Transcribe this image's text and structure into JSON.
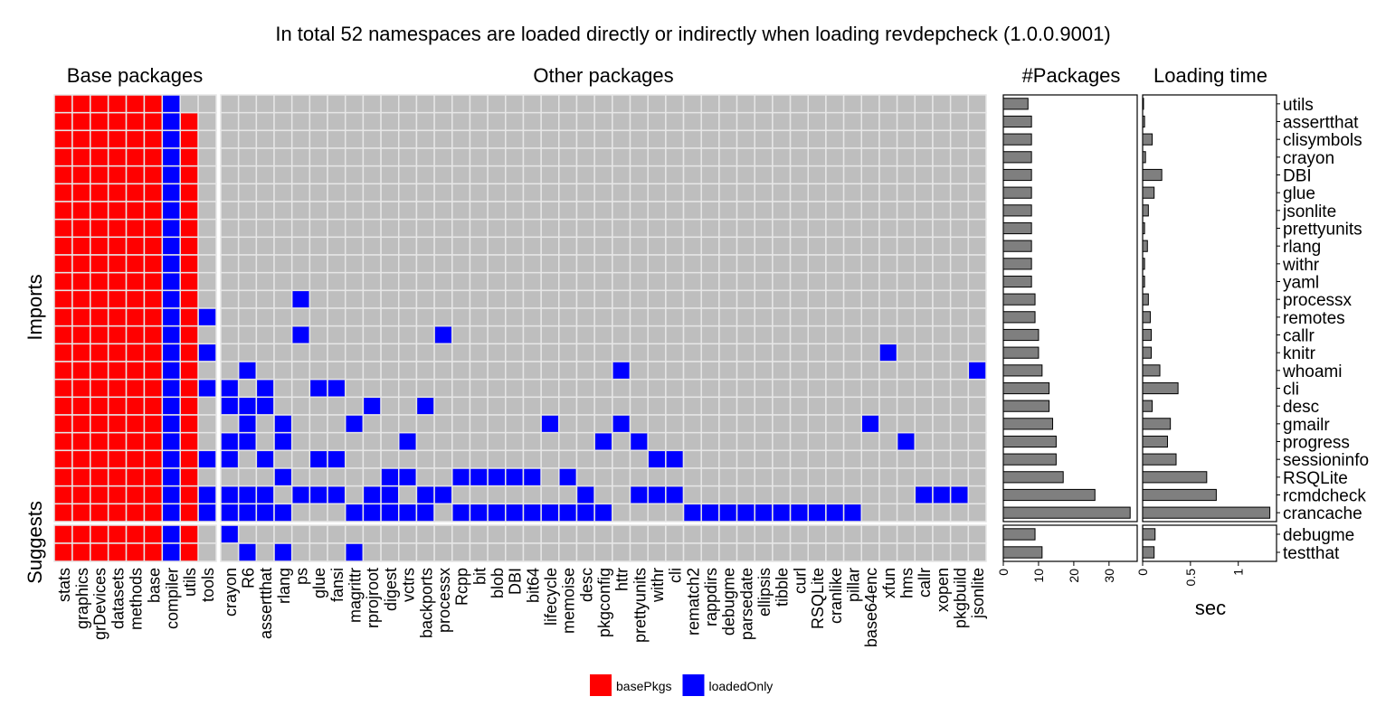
{
  "chart_data": {
    "type": "heatmap",
    "title": "In total 52 namespaces are loaded directly or indirectly when loading revdepcheck (1.0.0.9001)",
    "facets": {
      "columns": [
        "Base packages",
        "Other packages"
      ],
      "rows": [
        "Imports",
        "Suggests"
      ]
    },
    "legend": {
      "position": "bottom",
      "items": [
        {
          "label": "basePkgs",
          "color": "#ff0000"
        },
        {
          "label": "loadedOnly",
          "color": "#0000ff"
        }
      ]
    },
    "colors": {
      "tile_empty": "#bebebe",
      "grid": "#e6e6e6",
      "bar_fill": "#7f7f7f"
    },
    "base_columns": [
      "stats",
      "graphics",
      "grDevices",
      "datasets",
      "methods",
      "base",
      "compiler",
      "utils",
      "tools"
    ],
    "other_columns": [
      "crayon",
      "R6",
      "assertthat",
      "rlang",
      "ps",
      "glue",
      "fansi",
      "magrittr",
      "rprojroot",
      "digest",
      "vctrs",
      "backports",
      "processx",
      "Rcpp",
      "bit",
      "blob",
      "DBI",
      "bit64",
      "lifecycle",
      "memoise",
      "desc",
      "pkgconfig",
      "httr",
      "prettyunits",
      "withr",
      "cli",
      "rematch2",
      "rappdirs",
      "debugme",
      "parsedate",
      "ellipsis",
      "tibble",
      "curl",
      "RSQLite",
      "cranlike",
      "pillar",
      "base64enc",
      "xfun",
      "hms",
      "callr",
      "xopen",
      "pkgbuild",
      "jsonlite"
    ],
    "rows": [
      {
        "package": "utils",
        "type": "Imports",
        "base": "rrrrrrbx.",
        "other": [],
        "n_packages": 7,
        "load_time": 0.005
      },
      {
        "package": "assertthat",
        "type": "Imports",
        "base": "rrrrrrbr.",
        "other": [],
        "n_packages": 8,
        "load_time": 0.02
      },
      {
        "package": "clisymbols",
        "type": "Imports",
        "base": "rrrrrrbr.",
        "other": [],
        "n_packages": 8,
        "load_time": 0.1
      },
      {
        "package": "crayon",
        "type": "Imports",
        "base": "rrrrrrbr.",
        "other": [],
        "n_packages": 8,
        "load_time": 0.03
      },
      {
        "package": "DBI",
        "type": "Imports",
        "base": "rrrrrrbr.",
        "other": [],
        "n_packages": 8,
        "load_time": 0.2
      },
      {
        "package": "glue",
        "type": "Imports",
        "base": "rrrrrrbr.",
        "other": [],
        "n_packages": 8,
        "load_time": 0.12
      },
      {
        "package": "jsonlite",
        "type": "Imports",
        "base": "rrrrrrbr.",
        "other": [],
        "n_packages": 8,
        "load_time": 0.06
      },
      {
        "package": "prettyunits",
        "type": "Imports",
        "base": "rrrrrrbr.",
        "other": [],
        "n_packages": 8,
        "load_time": 0.02
      },
      {
        "package": "rlang",
        "type": "Imports",
        "base": "rrrrrrbr.",
        "other": [],
        "n_packages": 8,
        "load_time": 0.05
      },
      {
        "package": "withr",
        "type": "Imports",
        "base": "rrrrrrbr.",
        "other": [],
        "n_packages": 8,
        "load_time": 0.02
      },
      {
        "package": "yaml",
        "type": "Imports",
        "base": "rrrrrrbr.",
        "other": [],
        "n_packages": 8,
        "load_time": 0.02
      },
      {
        "package": "processx",
        "type": "Imports",
        "base": "rrrrrrbr.",
        "other": [
          "ps"
        ],
        "n_packages": 9,
        "load_time": 0.06
      },
      {
        "package": "remotes",
        "type": "Imports",
        "base": "rrrrrrbrb",
        "other": [],
        "n_packages": 9,
        "load_time": 0.08
      },
      {
        "package": "callr",
        "type": "Imports",
        "base": "rrrrrrbr.",
        "other": [
          "ps",
          "processx"
        ],
        "n_packages": 10,
        "load_time": 0.09
      },
      {
        "package": "knitr",
        "type": "Imports",
        "base": "rrrrrrbrb",
        "other": [
          "xfun"
        ],
        "n_packages": 10,
        "load_time": 0.09
      },
      {
        "package": "whoami",
        "type": "Imports",
        "base": "rrrrrrbr.",
        "other": [
          "R6",
          "httr",
          "jsonlite"
        ],
        "n_packages": 11,
        "load_time": 0.18
      },
      {
        "package": "cli",
        "type": "Imports",
        "base": "rrrrrrbrb",
        "other": [
          "crayon",
          "assertthat",
          "glue",
          "fansi"
        ],
        "n_packages": 13,
        "load_time": 0.37
      },
      {
        "package": "desc",
        "type": "Imports",
        "base": "rrrrrrbr.",
        "other": [
          "crayon",
          "R6",
          "assertthat",
          "rprojroot",
          "backports"
        ],
        "n_packages": 13,
        "load_time": 0.1
      },
      {
        "package": "gmailr",
        "type": "Imports",
        "base": "rrrrrrbr.",
        "other": [
          "R6",
          "rlang",
          "magrittr",
          "lifecycle",
          "httr",
          "base64enc"
        ],
        "n_packages": 14,
        "load_time": 0.29
      },
      {
        "package": "progress",
        "type": "Imports",
        "base": "rrrrrrbr.",
        "other": [
          "crayon",
          "R6",
          "rlang",
          "vctrs",
          "pkgconfig",
          "prettyunits",
          "hms"
        ],
        "n_packages": 15,
        "load_time": 0.26
      },
      {
        "package": "sessioninfo",
        "type": "Imports",
        "base": "rrrrrrbrb",
        "other": [
          "crayon",
          "assertthat",
          "glue",
          "fansi",
          "withr",
          "cli"
        ],
        "n_packages": 15,
        "load_time": 0.35
      },
      {
        "package": "RSQLite",
        "type": "Imports",
        "base": "rrrrrrbr.",
        "other": [
          "rlang",
          "digest",
          "vctrs",
          "Rcpp",
          "bit",
          "blob",
          "DBI",
          "bit64",
          "memoise"
        ],
        "n_packages": 17,
        "load_time": 0.67
      },
      {
        "package": "rcmdcheck",
        "type": "Imports",
        "base": "rrrrrrbrb",
        "other": [
          "crayon",
          "R6",
          "assertthat",
          "ps",
          "glue",
          "fansi",
          "rprojroot",
          "digest",
          "backports",
          "processx",
          "desc",
          "prettyunits",
          "withr",
          "cli",
          "callr",
          "xopen",
          "pkgbuild"
        ],
        "n_packages": 26,
        "load_time": 0.77
      },
      {
        "package": "crancache",
        "type": "Imports",
        "base": "rrrrrrbrb",
        "other": [
          "crayon",
          "R6",
          "assertthat",
          "rlang",
          "magrittr",
          "rprojroot",
          "digest",
          "vctrs",
          "backports",
          "Rcpp",
          "bit",
          "blob",
          "DBI",
          "bit64",
          "lifecycle",
          "memoise",
          "desc",
          "pkgconfig",
          "rematch2",
          "rappdirs",
          "debugme",
          "parsedate",
          "ellipsis",
          "tibble",
          "curl",
          "RSQLite",
          "cranlike",
          "pillar"
        ],
        "n_packages": 36,
        "load_time": 1.33
      },
      {
        "package": "debugme",
        "type": "Suggests",
        "base": "rrrrrrbr.",
        "other": [
          "crayon"
        ],
        "n_packages": 9,
        "load_time": 0.13
      },
      {
        "package": "testthat",
        "type": "Suggests",
        "base": "rrrrrrbr.",
        "other": [
          "R6",
          "rlang",
          "magrittr"
        ],
        "n_packages": 11,
        "load_time": 0.12
      }
    ],
    "panels": {
      "n_packages": {
        "title": "#Packages",
        "xlabel": "",
        "xlim": [
          0,
          38
        ],
        "ticks": [
          "0",
          "10",
          "20",
          "30"
        ]
      },
      "load_time": {
        "title": "Loading time",
        "xlabel": "sec",
        "xlim": [
          0,
          1.4
        ],
        "ticks": [
          "0",
          "0.5",
          "1"
        ]
      }
    }
  }
}
